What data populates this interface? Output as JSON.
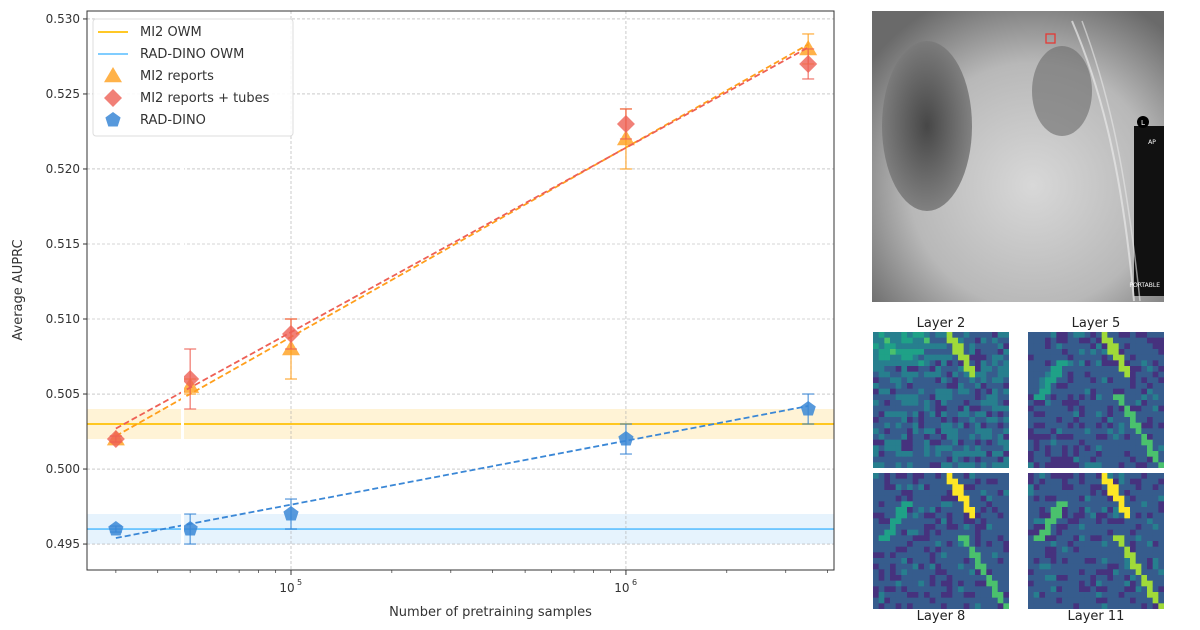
{
  "chart_data": {
    "type": "scatter",
    "xlabel": "Number of pretraining samples",
    "ylabel": "Average AUPRC",
    "xscale": "log",
    "xlim": [
      24600,
      4180000
    ],
    "ylim": [
      0.49327,
      0.53053
    ],
    "grid": true,
    "legend_placement": "top-left",
    "yticks": [
      0.495,
      0.5,
      0.505,
      0.51,
      0.515,
      0.52,
      0.525,
      0.53
    ],
    "ytick_labels": [
      "0.495",
      "0.500",
      "0.505",
      "0.510",
      "0.515",
      "0.520",
      "0.525",
      "0.530"
    ],
    "xticks": [
      {
        "value": 100000,
        "base": "10",
        "exp": "5"
      },
      {
        "value": 1000000,
        "base": "10",
        "exp": "6"
      }
    ],
    "hlines": [
      {
        "name": "MI2 OWM",
        "y": 0.503,
        "band": [
          0.502,
          0.504
        ],
        "color": "#ffc107",
        "band_color": "#fff3d6"
      },
      {
        "name": "RAD-DINO OWM",
        "y": 0.496,
        "band": [
          0.495,
          0.497
        ],
        "color": "#6ec6ff",
        "band_color": "#e6f3fd"
      }
    ],
    "series": [
      {
        "name": "MI2 reports",
        "marker": "triangle",
        "color": "#ff9f1c",
        "x": [
          30000,
          50000,
          100000,
          1000000,
          3500000
        ],
        "y": [
          0.502,
          0.5055,
          0.508,
          0.522,
          0.528
        ],
        "err_low": [
          0.5018,
          0.505,
          0.506,
          0.52,
          0.527
        ],
        "err_high": [
          0.5022,
          0.506,
          0.51,
          0.524,
          0.529
        ],
        "fit": [
          [
            30000,
            0.5022
          ],
          [
            3500000,
            0.5283
          ]
        ]
      },
      {
        "name": "MI2 reports + tubes",
        "marker": "diamond",
        "color": "#ee6055",
        "x": [
          30000,
          50000,
          100000,
          1000000,
          3500000
        ],
        "y": [
          0.502,
          0.506,
          0.509,
          0.523,
          0.527
        ],
        "err_low": [
          0.5018,
          0.504,
          0.508,
          0.522,
          0.526
        ],
        "err_high": [
          0.5022,
          0.508,
          0.51,
          0.524,
          0.528
        ],
        "fit": [
          [
            30000,
            0.5027
          ],
          [
            3500000,
            0.5281
          ]
        ]
      },
      {
        "name": "RAD-DINO",
        "marker": "pentagon",
        "color": "#3a87d6",
        "x": [
          30000,
          50000,
          100000,
          1000000,
          3500000
        ],
        "y": [
          0.496,
          0.496,
          0.497,
          0.502,
          0.504
        ],
        "err_low": [
          0.4958,
          0.495,
          0.496,
          0.501,
          0.503
        ],
        "err_high": [
          0.4962,
          0.497,
          0.498,
          0.503,
          0.505
        ],
        "fit": [
          [
            30000,
            0.4954
          ],
          [
            3500000,
            0.5042
          ]
        ]
      }
    ]
  },
  "xray": {
    "marker_L": "L",
    "marker_AP": "AP",
    "marker_portable": "PORTABLE"
  },
  "attention_maps": [
    {
      "label": "Layer 2"
    },
    {
      "label": "Layer 5"
    },
    {
      "label": "Layer 8"
    },
    {
      "label": "Layer 11"
    }
  ]
}
